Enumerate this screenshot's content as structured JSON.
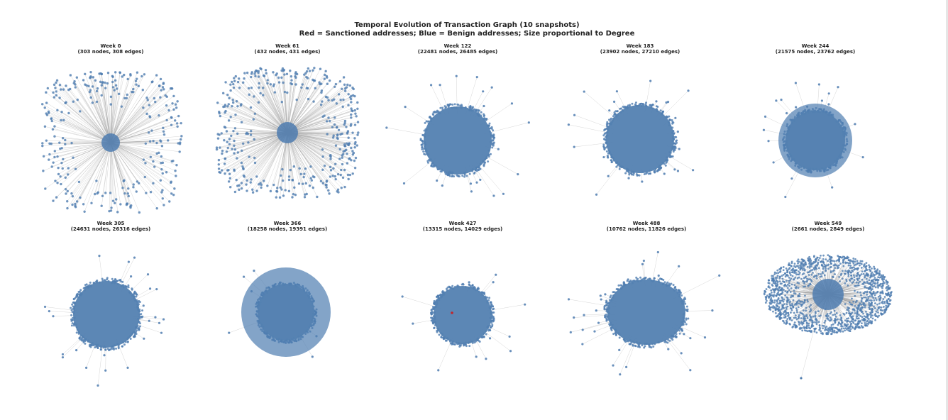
{
  "figure": {
    "title": "Temporal Evolution of Transaction Graph (10 snapshots)",
    "subtitle": "Red = Sanctioned addresses; Blue = Benign addresses; Size proportional to Degree",
    "colors": {
      "benign": "#4f7db0",
      "sanctioned": "#c0262d",
      "edge": "#a0a0a0"
    }
  },
  "panels": [
    {
      "title": "Week 0",
      "subtitle": "(303 nodes, 308 edges)"
    },
    {
      "title": "Week 61",
      "subtitle": "(432 nodes, 431 edges)"
    },
    {
      "title": "Week 122",
      "subtitle": "(22481 nodes, 26485 edges)"
    },
    {
      "title": "Week 183",
      "subtitle": "(23902 nodes, 27210 edges)"
    },
    {
      "title": "Week 244",
      "subtitle": "(21575 nodes, 23762 edges)"
    },
    {
      "title": "Week 305",
      "subtitle": "(24631 nodes, 26316 edges)"
    },
    {
      "title": "Week 366",
      "subtitle": "(18258 nodes, 19391 edges)"
    },
    {
      "title": "Week 427",
      "subtitle": "(13315 nodes, 14029 edges)"
    },
    {
      "title": "Week 488",
      "subtitle": "(10762 nodes, 11826 edges)"
    },
    {
      "title": "Week 549",
      "subtitle": "(2661 nodes, 2849 edges)"
    }
  ]
}
